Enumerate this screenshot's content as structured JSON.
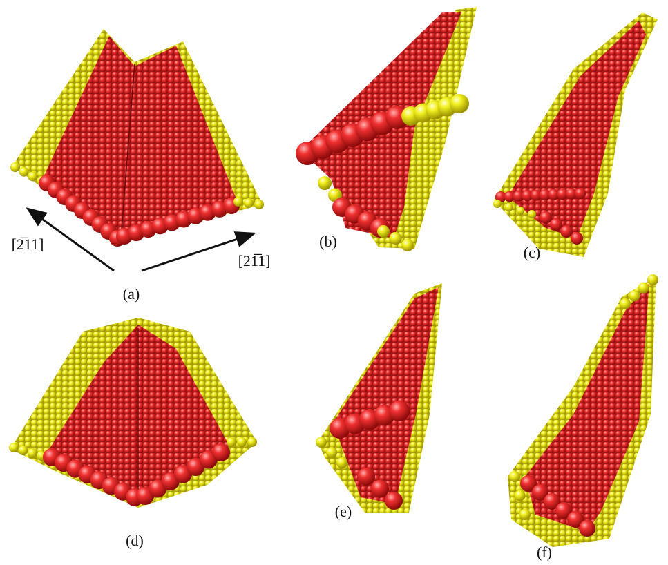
{
  "panels": [
    {
      "label": "(a)"
    },
    {
      "label": "(b)"
    },
    {
      "label": "(c)"
    },
    {
      "label": "(d)"
    },
    {
      "label": "(e)"
    },
    {
      "label": "(f)"
    }
  ],
  "directions": [
    "[2̅11]",
    "[21̅1]"
  ]
}
